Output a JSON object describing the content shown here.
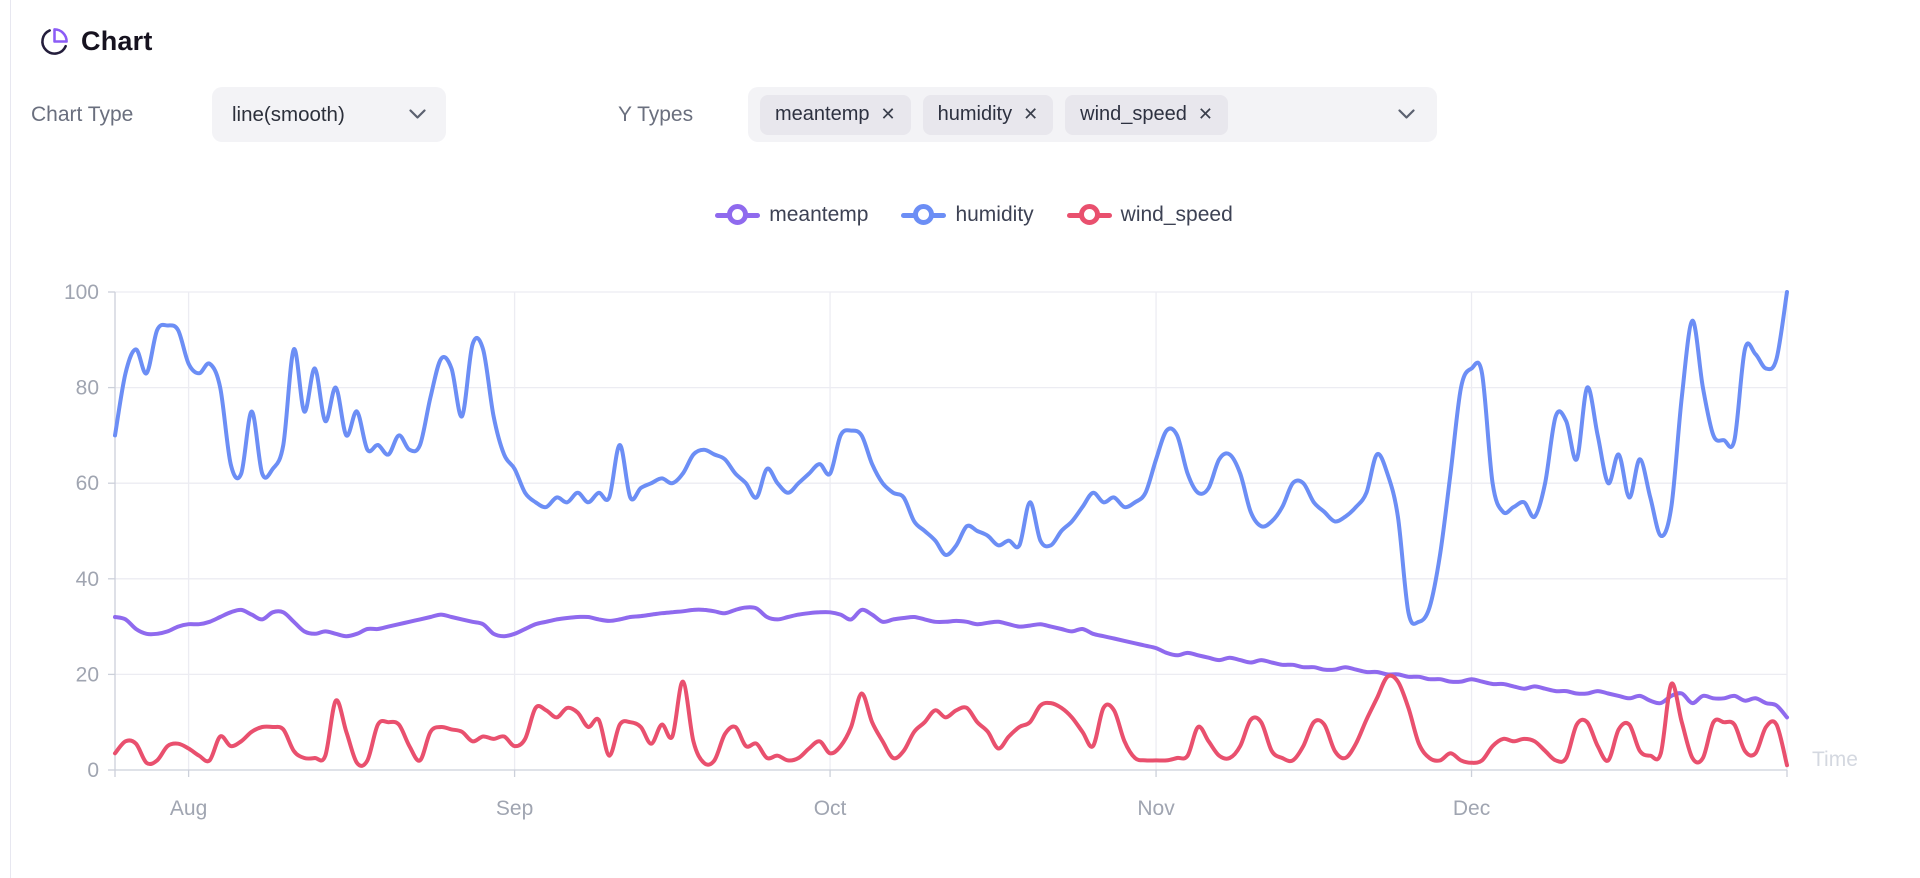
{
  "header": {
    "title": "Chart"
  },
  "controls": {
    "chart_type": {
      "label": "Chart Type",
      "value": "line(smooth)"
    },
    "y_types": {
      "label": "Y Types",
      "selected": [
        "meantemp",
        "humidity",
        "wind_speed"
      ],
      "remove_icon": "✕"
    }
  },
  "legend": [
    {
      "name": "meantemp",
      "color": "#8f6aee"
    },
    {
      "name": "humidity",
      "color": "#6c8ef5"
    },
    {
      "name": "wind_speed",
      "color": "#e9506e"
    }
  ],
  "colors": {
    "accent_purple": "#8b5cf6",
    "grid": "#ececf2",
    "axis": "#ccd0da",
    "tick_label": "#a0a5b1",
    "axis_name": "#d4d8e0",
    "legend_text": "#3d4254"
  },
  "chart_data": {
    "type": "line",
    "smooth": true,
    "title": "",
    "xlabel": "Time",
    "ylabel": "",
    "ylim": [
      0,
      100
    ],
    "y_ticks": [
      0,
      20,
      40,
      60,
      80,
      100
    ],
    "grid": true,
    "legend_position": "top-center",
    "x_months": [
      {
        "label": "Aug",
        "day": 7
      },
      {
        "label": "Sep",
        "day": 38
      },
      {
        "label": "Oct",
        "day": 68
      },
      {
        "label": "Nov",
        "day": 99
      },
      {
        "label": "Dec",
        "day": 129
      }
    ],
    "x_description": "daily samples, ~Jul 25 to Dec 31 (160 days)",
    "series": [
      {
        "name": "meantemp",
        "color": "#8f6aee",
        "values": [
          32,
          31.5,
          29.5,
          28.5,
          28.5,
          29,
          30,
          30.5,
          30.5,
          31,
          32,
          33,
          33.5,
          32.5,
          31.5,
          33,
          33,
          31,
          29,
          28.5,
          29,
          28.5,
          28,
          28.5,
          29.5,
          29.5,
          30,
          30.5,
          31,
          31.5,
          32,
          32.5,
          32,
          31.5,
          31,
          30.5,
          28.5,
          28,
          28.5,
          29.5,
          30.5,
          31,
          31.5,
          31.8,
          32,
          32,
          31.5,
          31.2,
          31.5,
          32,
          32.2,
          32.5,
          32.8,
          33,
          33.2,
          33.5,
          33.5,
          33.2,
          32.8,
          33.5,
          34,
          33.8,
          32,
          31.5,
          32,
          32.5,
          32.8,
          33,
          33,
          32.5,
          31.5,
          33.5,
          32.5,
          31,
          31.5,
          31.8,
          32,
          31.5,
          31,
          31,
          31.2,
          31,
          30.5,
          30.8,
          31,
          30.5,
          30,
          30.2,
          30.5,
          30,
          29.5,
          29,
          29.5,
          28.5,
          28,
          27.5,
          27,
          26.5,
          26,
          25.5,
          24.5,
          24,
          24.5,
          24,
          23.5,
          23,
          23.5,
          23,
          22.5,
          23,
          22.5,
          22,
          22,
          21.5,
          21.5,
          21,
          21,
          21.5,
          21,
          20.5,
          20.5,
          20,
          20,
          19.5,
          19.5,
          19,
          19,
          18.5,
          18.5,
          19,
          18.5,
          18,
          18,
          17.5,
          17,
          17.5,
          17,
          16.5,
          16.5,
          16,
          16,
          16.5,
          16,
          15.5,
          15,
          15.5,
          14.5,
          14,
          15.5,
          16,
          14,
          15.5,
          15,
          15,
          15.5,
          14.5,
          15,
          14,
          13.5,
          11
        ]
      },
      {
        "name": "humidity",
        "color": "#6c8ef5",
        "values": [
          70,
          83,
          88,
          83,
          92,
          93,
          92,
          85,
          83,
          85,
          80,
          64,
          62,
          75,
          62,
          63,
          68,
          88,
          75,
          84,
          73,
          80,
          70,
          75,
          67,
          68,
          66,
          70,
          67,
          68,
          78,
          86,
          84,
          74,
          89,
          88,
          74,
          66,
          63,
          58,
          56,
          55,
          57,
          56,
          58,
          56,
          58,
          57,
          68,
          57,
          59,
          60,
          61,
          60,
          62,
          66,
          67,
          66,
          65,
          62,
          60,
          57,
          63,
          60,
          58,
          60,
          62,
          64,
          62,
          70,
          71,
          70,
          64,
          60,
          58,
          57,
          52,
          50,
          48,
          45,
          47,
          51,
          50,
          49,
          47,
          48,
          47,
          56,
          48,
          47,
          50,
          52,
          55,
          58,
          56,
          57,
          55,
          56,
          58,
          65,
          71,
          70,
          62,
          58,
          59,
          65,
          66,
          62,
          54,
          51,
          52,
          55,
          60,
          60,
          56,
          54,
          52,
          53,
          55,
          58,
          66,
          62,
          53,
          33,
          31,
          34,
          45,
          62,
          80,
          84,
          83,
          60,
          54,
          55,
          56,
          53,
          60,
          74,
          73,
          65,
          80,
          70,
          60,
          66,
          57,
          65,
          57,
          49,
          55,
          78,
          94,
          80,
          70,
          69,
          69,
          88,
          87,
          84,
          86,
          100
        ]
      },
      {
        "name": "wind_speed",
        "color": "#e9506e",
        "values": [
          3.5,
          6,
          5.5,
          1.5,
          2,
          5,
          5.5,
          4.5,
          3,
          2,
          7,
          5,
          6,
          8,
          9,
          9,
          8.5,
          4,
          2.5,
          2.5,
          3,
          14.5,
          8,
          1.5,
          2,
          9.5,
          10,
          9.5,
          5,
          2,
          8,
          9,
          8.5,
          8,
          6,
          7,
          6.5,
          7,
          5,
          6.5,
          13,
          12.5,
          11,
          13,
          12,
          9,
          10.5,
          3,
          9.5,
          10,
          9,
          5.5,
          9.5,
          7,
          18.5,
          6,
          1.5,
          2,
          7.5,
          9,
          5,
          5.5,
          2.5,
          3,
          2,
          2.5,
          4.5,
          6,
          3.5,
          5,
          9,
          16,
          10,
          6,
          2.5,
          4,
          8,
          10,
          12.5,
          11,
          12.5,
          13,
          10,
          8,
          4.5,
          7,
          9,
          10,
          13.5,
          14,
          13,
          11,
          8,
          5,
          13,
          12.5,
          6,
          2.5,
          2,
          2,
          2,
          2.5,
          3,
          9,
          6,
          3,
          2.5,
          5,
          10.5,
          10,
          4,
          2.5,
          2,
          5,
          10,
          9.5,
          4,
          2.5,
          5.5,
          10.5,
          15,
          19.5,
          18.5,
          13,
          5.5,
          2.5,
          2,
          3.5,
          2,
          1.5,
          2,
          5,
          6.5,
          6,
          6.5,
          6,
          4,
          2,
          2.5,
          9.5,
          10,
          5,
          2,
          8.5,
          9.5,
          4,
          3,
          3.5,
          18,
          10,
          2.5,
          2.5,
          10,
          10,
          9.5,
          4,
          3.5,
          9,
          9.5,
          1
        ]
      }
    ]
  }
}
